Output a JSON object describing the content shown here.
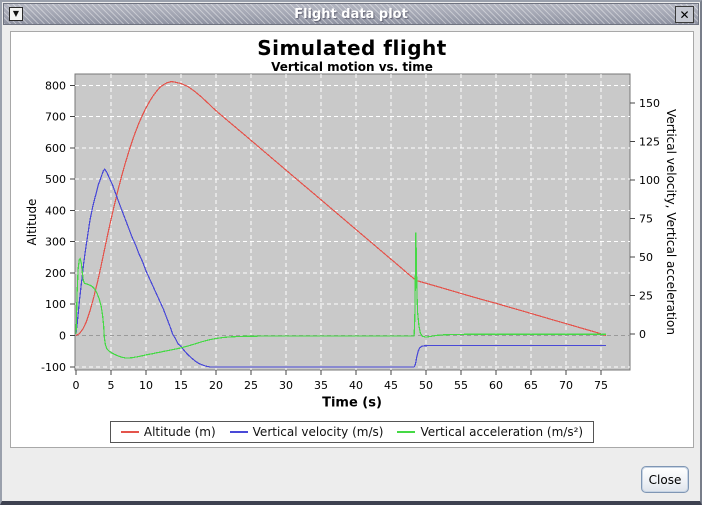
{
  "titlebar": {
    "title": "Flight data plot",
    "menu_glyph": "▼",
    "close_glyph": "✕"
  },
  "buttons": {
    "close": "Close"
  },
  "colors": {
    "plot_background": "#c9c9c9",
    "grid": "#ffffff",
    "zero_line": "#9a9a9a",
    "altitude": "#e4544c",
    "velocity": "#4949d7",
    "acceleration": "#45d945"
  },
  "chart_data": {
    "type": "line",
    "title": "Simulated flight",
    "subtitle": "Vertical motion vs. time",
    "xlabel": "Time (s)",
    "ylabel_left": "Altitude",
    "ylabel_right": "Vertical velocity, Vertical acceleration",
    "grid": true,
    "legend_position": "bottom",
    "xlim": [
      0,
      79
    ],
    "x_ticks": [
      0,
      5,
      10,
      15,
      20,
      25,
      30,
      35,
      40,
      45,
      50,
      55,
      60,
      65,
      70,
      75
    ],
    "left_lim": [
      -110,
      840
    ],
    "left_ticks": [
      -100,
      0,
      100,
      200,
      300,
      400,
      500,
      600,
      700,
      800
    ],
    "right_lim": [
      -24,
      169
    ],
    "right_ticks": [
      0,
      25,
      50,
      75,
      100,
      125,
      150
    ],
    "series": [
      {
        "name": "Altitude (m)",
        "axis": "left",
        "color": "#e4544c",
        "points": [
          [
            0,
            0
          ],
          [
            0.5,
            6
          ],
          [
            1,
            21
          ],
          [
            1.5,
            45
          ],
          [
            2,
            79
          ],
          [
            2.5,
            119
          ],
          [
            3,
            164
          ],
          [
            3.5,
            214
          ],
          [
            4,
            267
          ],
          [
            4.5,
            320
          ],
          [
            5,
            371
          ],
          [
            5.5,
            419
          ],
          [
            6,
            465
          ],
          [
            6.5,
            508
          ],
          [
            7,
            548
          ],
          [
            7.5,
            585
          ],
          [
            8,
            620
          ],
          [
            8.5,
            651
          ],
          [
            9,
            680
          ],
          [
            9.5,
            705
          ],
          [
            10,
            728
          ],
          [
            10.5,
            748
          ],
          [
            11,
            766
          ],
          [
            11.5,
            781
          ],
          [
            12,
            794
          ],
          [
            12.5,
            802
          ],
          [
            13,
            808
          ],
          [
            13.6,
            812
          ],
          [
            14,
            811
          ],
          [
            15,
            806
          ],
          [
            16,
            796
          ],
          [
            17,
            780
          ],
          [
            18,
            761
          ],
          [
            19,
            740
          ],
          [
            20,
            719
          ],
          [
            22,
            681
          ],
          [
            24,
            643
          ],
          [
            26,
            605
          ],
          [
            28,
            567
          ],
          [
            30,
            529
          ],
          [
            32,
            491
          ],
          [
            34,
            453
          ],
          [
            36,
            415
          ],
          [
            38,
            377
          ],
          [
            40,
            339
          ],
          [
            42,
            301
          ],
          [
            44,
            263
          ],
          [
            46,
            225
          ],
          [
            47.5,
            196
          ],
          [
            48.6,
            176
          ],
          [
            50,
            167
          ],
          [
            52,
            154
          ],
          [
            54,
            141
          ],
          [
            56,
            128
          ],
          [
            58,
            115
          ],
          [
            60,
            103
          ],
          [
            62,
            90
          ],
          [
            64,
            77
          ],
          [
            66,
            64
          ],
          [
            68,
            51
          ],
          [
            70,
            38
          ],
          [
            72,
            25
          ],
          [
            74,
            12
          ],
          [
            75,
            5
          ],
          [
            75.7,
            0
          ]
        ]
      },
      {
        "name": "Vertical velocity (m/s)",
        "axis": "right",
        "color": "#4949d7",
        "points": [
          [
            0,
            0
          ],
          [
            0.2,
            8
          ],
          [
            0.5,
            22
          ],
          [
            0.8,
            34
          ],
          [
            1.1,
            46
          ],
          [
            1.4,
            56
          ],
          [
            1.7,
            65
          ],
          [
            2,
            74
          ],
          [
            2.4,
            83
          ],
          [
            2.8,
            90
          ],
          [
            3.2,
            97
          ],
          [
            3.6,
            102
          ],
          [
            3.9,
            106
          ],
          [
            4.1,
            107
          ],
          [
            4.4,
            105
          ],
          [
            4.8,
            101
          ],
          [
            5.2,
            97
          ],
          [
            5.6,
            92
          ],
          [
            6,
            87
          ],
          [
            6.5,
            81
          ],
          [
            7,
            75
          ],
          [
            7.5,
            69
          ],
          [
            8,
            63
          ],
          [
            8.5,
            58
          ],
          [
            9,
            52
          ],
          [
            9.5,
            47
          ],
          [
            10,
            41
          ],
          [
            10.5,
            36
          ],
          [
            11,
            31
          ],
          [
            11.5,
            26
          ],
          [
            12,
            21
          ],
          [
            12.5,
            16
          ],
          [
            13,
            10
          ],
          [
            13.5,
            4
          ],
          [
            13.8,
            0
          ],
          [
            14.2,
            -3
          ],
          [
            14.6,
            -6.5
          ],
          [
            15,
            -8
          ],
          [
            15.5,
            -11
          ],
          [
            16,
            -13.5
          ],
          [
            16.5,
            -15.5
          ],
          [
            17,
            -17.5
          ],
          [
            17.5,
            -19
          ],
          [
            18,
            -20
          ],
          [
            18.5,
            -20.8
          ],
          [
            19,
            -21.3
          ],
          [
            19.5,
            -21.5
          ],
          [
            25,
            -21.5
          ],
          [
            35,
            -21.5
          ],
          [
            45,
            -21.5
          ],
          [
            48.3,
            -21.5
          ],
          [
            48.5,
            -19.5
          ],
          [
            48.7,
            -14.5
          ],
          [
            48.9,
            -11
          ],
          [
            49.1,
            -9
          ],
          [
            49.4,
            -8
          ],
          [
            49.8,
            -7.6
          ],
          [
            50.5,
            -7.5
          ],
          [
            60,
            -7.5
          ],
          [
            70,
            -7.5
          ],
          [
            75.7,
            -7.5
          ]
        ]
      },
      {
        "name": "Vertical acceleration (m/s²)",
        "axis": "right",
        "color": "#45d945",
        "points": [
          [
            0,
            0
          ],
          [
            0.05,
            5
          ],
          [
            0.15,
            25
          ],
          [
            0.3,
            42
          ],
          [
            0.45,
            48
          ],
          [
            0.6,
            49
          ],
          [
            0.75,
            46
          ],
          [
            0.9,
            40
          ],
          [
            1.05,
            35
          ],
          [
            1.2,
            33
          ],
          [
            1.5,
            32.5
          ],
          [
            1.8,
            32
          ],
          [
            2.1,
            31.5
          ],
          [
            2.4,
            30.5
          ],
          [
            2.7,
            29
          ],
          [
            3,
            26.5
          ],
          [
            3.3,
            23
          ],
          [
            3.6,
            18
          ],
          [
            3.8,
            12
          ],
          [
            3.95,
            5
          ],
          [
            4.05,
            -2
          ],
          [
            4.2,
            -7
          ],
          [
            4.4,
            -9.5
          ],
          [
            4.7,
            -11
          ],
          [
            5,
            -12
          ],
          [
            5.5,
            -13.2
          ],
          [
            6,
            -14.2
          ],
          [
            6.5,
            -15
          ],
          [
            7,
            -15.5
          ],
          [
            7.5,
            -15.6
          ],
          [
            8,
            -15.4
          ],
          [
            8.5,
            -15
          ],
          [
            9,
            -14.6
          ],
          [
            9.5,
            -14.1
          ],
          [
            10,
            -13.6
          ],
          [
            10.5,
            -13.1
          ],
          [
            11,
            -12.7
          ],
          [
            11.5,
            -12.2
          ],
          [
            12,
            -11.8
          ],
          [
            12.5,
            -11.3
          ],
          [
            13,
            -10.9
          ],
          [
            13.5,
            -10.4
          ],
          [
            14,
            -10
          ],
          [
            14.5,
            -9.5
          ],
          [
            15,
            -9
          ],
          [
            15.5,
            -8.4
          ],
          [
            16,
            -7.8
          ],
          [
            16.5,
            -7.1
          ],
          [
            17,
            -6.4
          ],
          [
            17.5,
            -5.7
          ],
          [
            18,
            -5
          ],
          [
            18.5,
            -4.4
          ],
          [
            19,
            -3.8
          ],
          [
            19.5,
            -3.3
          ],
          [
            20,
            -2.9
          ],
          [
            21,
            -2.3
          ],
          [
            22,
            -1.9
          ],
          [
            23,
            -1.7
          ],
          [
            24,
            -1.5
          ],
          [
            25,
            -1.4
          ],
          [
            27,
            -1.35
          ],
          [
            30,
            -1.3
          ],
          [
            35,
            -1.3
          ],
          [
            40,
            -1.3
          ],
          [
            45,
            -1.3
          ],
          [
            48.3,
            -1.3
          ],
          [
            48.4,
            10
          ],
          [
            48.5,
            45
          ],
          [
            48.55,
            66
          ],
          [
            48.6,
            55
          ],
          [
            48.7,
            28
          ],
          [
            48.8,
            14
          ],
          [
            49,
            5
          ],
          [
            49.2,
            0.5
          ],
          [
            49.5,
            -1.5
          ],
          [
            50,
            -2
          ],
          [
            50.6,
            -1.6
          ],
          [
            51.5,
            -0.9
          ],
          [
            52.5,
            -0.5
          ],
          [
            54,
            -0.3
          ],
          [
            56,
            -0.2
          ],
          [
            60,
            -0.2
          ],
          [
            65,
            -0.2
          ],
          [
            70,
            -0.2
          ],
          [
            75.7,
            -0.2
          ]
        ]
      }
    ]
  }
}
